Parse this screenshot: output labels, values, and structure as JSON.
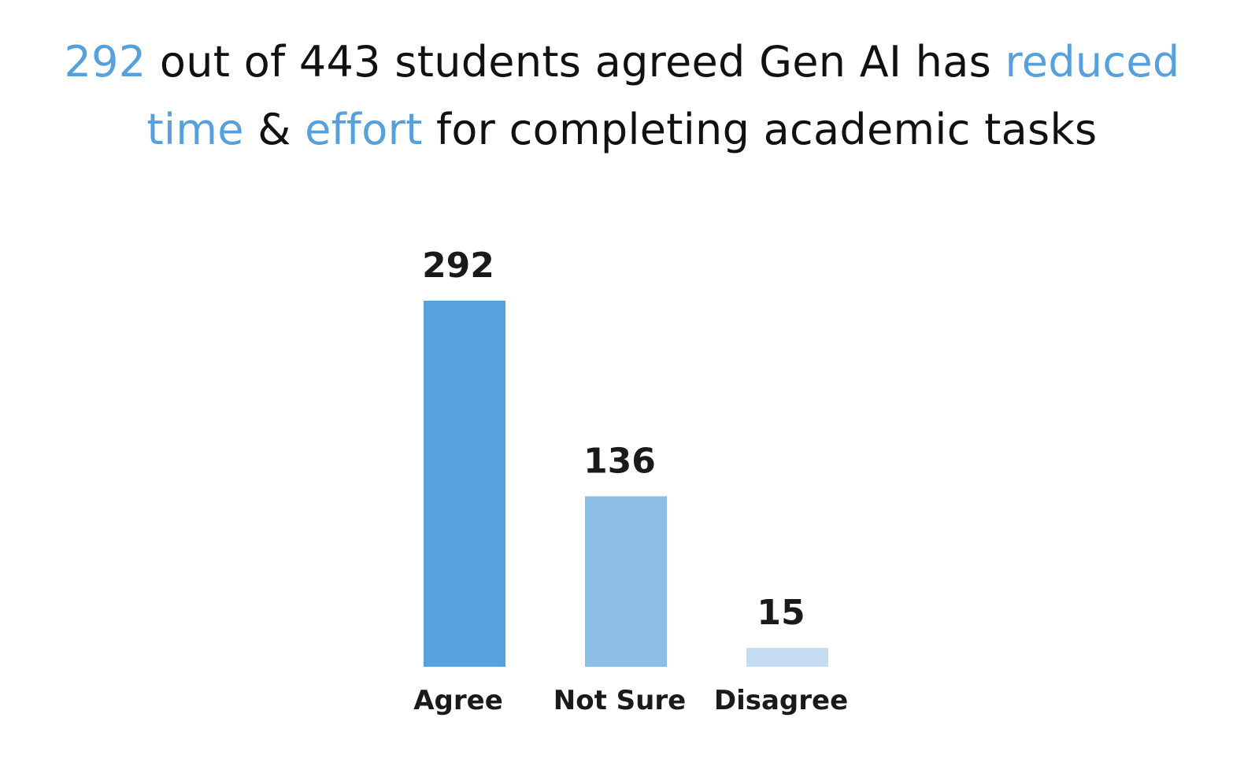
{
  "title": {
    "line1": [
      {
        "text": "292",
        "highlight": true
      },
      {
        "text": " out of 443 students agreed Gen AI has ",
        "highlight": false
      },
      {
        "text": "reduced",
        "highlight": true
      }
    ],
    "line2": [
      {
        "text": "time",
        "highlight": true
      },
      {
        "text": " & ",
        "highlight": false
      },
      {
        "text": "effort",
        "highlight": true
      },
      {
        "text": " for completing academic tasks",
        "highlight": false
      }
    ]
  },
  "chart_data": {
    "type": "bar",
    "categories": [
      "Agree",
      "Not Sure",
      "Disagree"
    ],
    "values": [
      292,
      136,
      15
    ],
    "colors": [
      "#55a2de",
      "#8bbde5",
      "#c3dcf1"
    ],
    "title": "292 out of 443 students agreed Gen AI has reduced time & effort for completing academic tasks",
    "xlabel": "",
    "ylabel": "",
    "grid": false,
    "legend": "none"
  }
}
